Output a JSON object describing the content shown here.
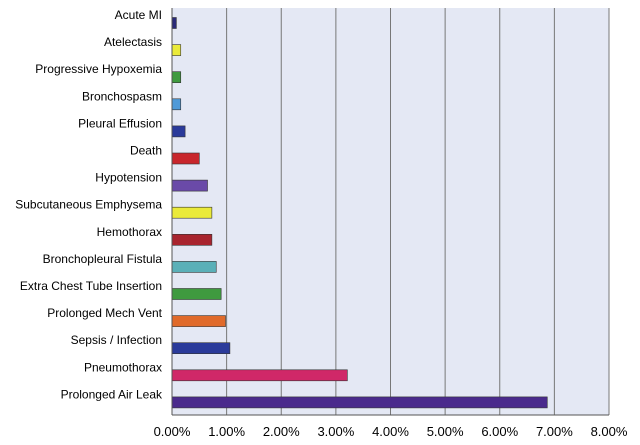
{
  "chart_data": {
    "type": "bar",
    "orientation": "horizontal",
    "categories": [
      "Acute MI",
      "Atelectasis",
      "Progressive Hypoxemia",
      "Bronchospasm",
      "Pleural Effusion",
      "Death",
      "Hypotension",
      "Subcutaneous Emphysema",
      "Hemothorax",
      "Bronchopleural Fistula",
      "Extra Chest Tube Insertion",
      "Prolonged Mech Vent",
      "Sepsis / Infection",
      "Pneumothorax",
      "Prolonged Air Leak"
    ],
    "values": [
      0.08,
      0.16,
      0.16,
      0.16,
      0.24,
      0.5,
      0.65,
      0.73,
      0.73,
      0.81,
      0.9,
      0.98,
      1.06,
      3.21,
      6.87
    ],
    "colors": [
      "#2b2a78",
      "#eaea3a",
      "#3f9a3f",
      "#4f9ad8",
      "#2a3a9a",
      "#c8262c",
      "#6a4aa8",
      "#eaea3a",
      "#a8242e",
      "#5ab0b8",
      "#3f9a3f",
      "#e06a2a",
      "#2a3a9a",
      "#d02868",
      "#4a2a8c"
    ],
    "xlim": [
      0,
      8
    ],
    "xticks": [
      "0.00%",
      "1.00%",
      "2.00%",
      "3.00%",
      "4.00%",
      "5.00%",
      "6.00%",
      "7.00%",
      "8.00%"
    ],
    "grid": true,
    "plot_background": "#e4e8f4",
    "title": "",
    "xlabel": "",
    "ylabel": ""
  }
}
